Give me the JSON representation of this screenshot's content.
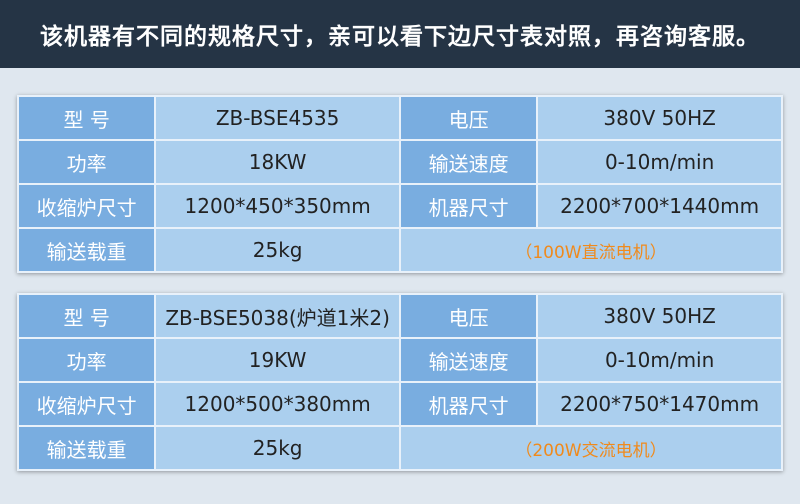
{
  "header": {
    "title": "该机器有不同的规格尺寸，亲可以看下边尺寸表对照，再咨询客服。"
  },
  "tables": [
    {
      "rows": [
        [
          "型 号",
          "ZB-BSE4535",
          "电压",
          "380V 50HZ"
        ],
        [
          "功率",
          "18KW",
          "输送速度",
          "0-10m/min"
        ],
        [
          "收缩炉尺寸",
          "1200*450*350mm",
          "机器尺寸",
          "2200*700*1440mm"
        ],
        [
          "输送载重",
          "25kg",
          "（100W直流电机）"
        ]
      ]
    },
    {
      "rows": [
        [
          "型 号",
          "ZB-BSE5038(炉道1米2)",
          "电压",
          "380V 50HZ"
        ],
        [
          "功率",
          "19KW",
          "输送速度",
          "0-10m/min"
        ],
        [
          "收缩炉尺寸",
          "1200*500*380mm",
          "机器尺寸",
          "2200*750*1470mm"
        ],
        [
          "输送载重",
          "25kg",
          "（200W交流电机）"
        ]
      ]
    }
  ],
  "colors": {
    "header": "#253445",
    "label_cell": "#79ade0",
    "value_cell": "#abcfee",
    "note": "#f08a1c"
  }
}
